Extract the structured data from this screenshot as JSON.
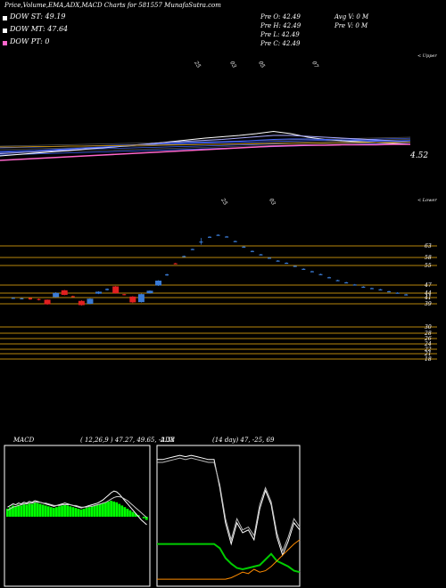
{
  "header": {
    "title": "Price,Volume,EMA,ADX,MACD Charts for 581557 MunafaSutra.com"
  },
  "legend": [
    {
      "label": "DOW ST: 49.19",
      "color": "#ffffff"
    },
    {
      "label": "DOW MT: 47.64",
      "color": "#ffffff"
    },
    {
      "label": "DOW PT: 0",
      "color": "#ff66cc"
    }
  ],
  "ohlc": {
    "open": "Pre  O: 42.49",
    "high": "Pre  H: 42.49",
    "low": "Pre  L: 42.49",
    "close": "Pre  C: 42.49",
    "avg_volume": "Avg V: 0  M",
    "pre_volume": "Pre  V: 0  M"
  },
  "labels": {
    "upper": "< Upper",
    "lower": "< Lower",
    "ema_value": "4.52"
  },
  "colors": {
    "background": "#000000",
    "resistance_line": "#b8860b",
    "up_candle": "#3a7bd5",
    "down_candle": "#e02020",
    "macd_hist": "#00ff00",
    "adx_green": "#00cc00",
    "adx_orange": "#ff8c00",
    "ema_blue": "#4466ff",
    "ema_pink": "#ff66cc"
  },
  "chart_data": [
    {
      "type": "line",
      "panel": "ema",
      "date_labels": [
        "25",
        "03",
        "05",
        "07"
      ],
      "series": [
        {
          "values": [
            70,
            73,
            76,
            79,
            82,
            85,
            88,
            91,
            94,
            98,
            102,
            106,
            110,
            113,
            116,
            120,
            125,
            120,
            112,
            107,
            104,
            102,
            100,
            98,
            96
          ]
        },
        {
          "values": [
            75,
            77,
            79,
            81,
            83,
            86,
            89,
            92,
            95,
            98,
            101,
            103,
            105,
            107,
            110,
            113,
            116,
            116,
            114,
            112,
            110,
            108,
            106,
            104,
            102
          ]
        },
        {
          "values": [
            78,
            80,
            82,
            84,
            86,
            88,
            90,
            92,
            94,
            96,
            98,
            100,
            101,
            102,
            103,
            105,
            107,
            108,
            108,
            107,
            106,
            105,
            104,
            103,
            102
          ]
        },
        {
          "values": [
            60,
            62,
            64,
            66,
            68,
            70,
            72,
            74,
            76,
            78,
            80,
            82,
            84,
            86,
            88,
            90,
            92,
            93,
            94,
            94,
            95,
            95,
            95,
            96,
            96
          ]
        },
        {
          "values": [
            90,
            90,
            91,
            91,
            92,
            92,
            93,
            93,
            94,
            94,
            95,
            95,
            96,
            96,
            97,
            97,
            98,
            98,
            99,
            99,
            100,
            100,
            100,
            100,
            101
          ]
        }
      ]
    },
    {
      "type": "candlestick",
      "panel": "price",
      "date_labels": [
        "25",
        "03"
      ],
      "y_ticks": [
        63,
        58,
        55,
        47,
        44,
        41,
        39,
        30,
        28,
        26,
        24,
        22,
        21,
        18
      ],
      "resistance_levels": [
        63,
        58,
        55,
        47,
        44,
        41,
        39,
        30,
        28,
        26,
        24,
        22,
        21,
        18
      ],
      "candles": [
        {
          "o": 41.5,
          "h": 41.6,
          "l": 41.4,
          "c": 41.5
        },
        {
          "o": 41.3,
          "h": 41.4,
          "l": 41.2,
          "c": 41.3
        },
        {
          "o": 41.4,
          "h": 41.5,
          "l": 40.7,
          "c": 40.8
        },
        {
          "o": 41.0,
          "h": 41.2,
          "l": 40.4,
          "c": 40.6
        },
        {
          "o": 40.7,
          "h": 40.8,
          "l": 38.6,
          "c": 38.8
        },
        {
          "o": 41.8,
          "h": 43.8,
          "l": 41.6,
          "c": 43.5
        },
        {
          "o": 44.6,
          "h": 44.8,
          "l": 42.5,
          "c": 42.7
        },
        {
          "o": 42.2,
          "h": 42.4,
          "l": 41.8,
          "c": 42.0
        },
        {
          "o": 40.2,
          "h": 40.5,
          "l": 38.3,
          "c": 38.5
        },
        {
          "o": 39.0,
          "h": 41.3,
          "l": 38.8,
          "c": 41.1
        },
        {
          "o": 43.2,
          "h": 44.2,
          "l": 43.0,
          "c": 44.0
        },
        {
          "o": 44.7,
          "h": 45.4,
          "l": 44.5,
          "c": 45.2
        },
        {
          "o": 46.2,
          "h": 46.4,
          "l": 43.2,
          "c": 43.4
        },
        {
          "o": 43.0,
          "h": 43.1,
          "l": 42.5,
          "c": 42.6
        },
        {
          "o": 42.0,
          "h": 42.2,
          "l": 39.3,
          "c": 39.6
        },
        {
          "o": 39.7,
          "h": 43.2,
          "l": 39.5,
          "c": 43.0
        },
        {
          "o": 43.4,
          "h": 44.6,
          "l": 43.2,
          "c": 44.4
        },
        {
          "o": 46.6,
          "h": 48.8,
          "l": 46.4,
          "c": 48.6
        },
        {
          "o": 51.0,
          "h": 51.5,
          "l": 50.6,
          "c": 51.2
        },
        {
          "o": 55.8,
          "h": 56.0,
          "l": 55.5,
          "c": 55.7
        },
        {
          "o": 58.8,
          "h": 59.0,
          "l": 58.6,
          "c": 58.8
        },
        {
          "o": 61.7,
          "h": 61.9,
          "l": 61.5,
          "c": 61.7
        },
        {
          "o": 64.8,
          "h": 66.3,
          "l": 63.5,
          "c": 64.8
        },
        {
          "o": 66.8,
          "h": 67.0,
          "l": 66.6,
          "c": 66.8
        },
        {
          "o": 67.6,
          "h": 67.8,
          "l": 67.4,
          "c": 67.6
        },
        {
          "o": 66.9,
          "h": 67.1,
          "l": 66.7,
          "c": 66.9
        },
        {
          "o": 65.0,
          "h": 65.2,
          "l": 64.8,
          "c": 65.0
        },
        {
          "o": 62.7,
          "h": 62.9,
          "l": 62.5,
          "c": 62.7
        },
        {
          "o": 60.9,
          "h": 61.1,
          "l": 60.7,
          "c": 60.9
        },
        {
          "o": 59.5,
          "h": 59.7,
          "l": 59.3,
          "c": 59.5
        },
        {
          "o": 58.1,
          "h": 58.3,
          "l": 57.9,
          "c": 58.1
        },
        {
          "o": 56.9,
          "h": 57.1,
          "l": 56.7,
          "c": 56.9
        },
        {
          "o": 56.0,
          "h": 56.2,
          "l": 55.8,
          "c": 56.0
        },
        {
          "o": 54.7,
          "h": 54.9,
          "l": 54.5,
          "c": 54.7
        },
        {
          "o": 53.5,
          "h": 53.7,
          "l": 53.3,
          "c": 53.5
        },
        {
          "o": 52.5,
          "h": 52.7,
          "l": 52.3,
          "c": 52.5
        },
        {
          "o": 51.3,
          "h": 51.5,
          "l": 51.1,
          "c": 51.3
        },
        {
          "o": 50.0,
          "h": 50.2,
          "l": 49.8,
          "c": 50.0
        },
        {
          "o": 48.8,
          "h": 49.0,
          "l": 48.6,
          "c": 48.8
        },
        {
          "o": 47.9,
          "h": 48.1,
          "l": 47.7,
          "c": 47.9
        },
        {
          "o": 47.0,
          "h": 47.2,
          "l": 46.8,
          "c": 47.0
        },
        {
          "o": 46.1,
          "h": 46.3,
          "l": 45.9,
          "c": 46.1
        },
        {
          "o": 45.5,
          "h": 45.7,
          "l": 45.3,
          "c": 45.5
        },
        {
          "o": 45.0,
          "h": 45.2,
          "l": 44.8,
          "c": 45.0
        },
        {
          "o": 44.2,
          "h": 44.4,
          "l": 44.0,
          "c": 44.2
        },
        {
          "o": 43.6,
          "h": 43.8,
          "l": 43.4,
          "c": 43.6
        },
        {
          "o": 42.9,
          "h": 43.1,
          "l": 42.7,
          "c": 42.9
        }
      ]
    },
    {
      "type": "bar",
      "panel": "macd",
      "title": "MACD",
      "params": "( 12,26,9 ) 47.27, 49.65, -2.38",
      "histogram": [
        10,
        12,
        14,
        13,
        15,
        14,
        16,
        15,
        17,
        16,
        18,
        17,
        16,
        15,
        14,
        13,
        12,
        11,
        12,
        13,
        14,
        15,
        14,
        13,
        12,
        11,
        10,
        9,
        10,
        11,
        12,
        13,
        14,
        15,
        16,
        17,
        18,
        19,
        20,
        19,
        18,
        16,
        14,
        12,
        10,
        8,
        6,
        4,
        2,
        0,
        -2,
        -4
      ],
      "macd_line": [
        12,
        14,
        16,
        15,
        17,
        16,
        18,
        17,
        19,
        18,
        20,
        19,
        18,
        17,
        16,
        15,
        14,
        13,
        14,
        15,
        16,
        17,
        16,
        15,
        14,
        13,
        12,
        11,
        12,
        13,
        14,
        15,
        16,
        17,
        19,
        21,
        24,
        27,
        30,
        32,
        31,
        28,
        24,
        20,
        16,
        12,
        8,
        4,
        0,
        -4,
        -7,
        -10
      ],
      "signal_line": [
        8,
        10,
        12,
        13,
        14,
        15,
        16,
        16,
        17,
        17,
        18,
        18,
        18,
        17,
        17,
        16,
        15,
        14,
        14,
        14,
        15,
        15,
        15,
        15,
        14,
        14,
        13,
        12,
        12,
        12,
        13,
        13,
        14,
        15,
        16,
        17,
        18,
        20,
        22,
        24,
        25,
        25,
        24,
        22,
        20,
        17,
        14,
        11,
        8,
        5,
        2,
        -1
      ]
    },
    {
      "type": "line",
      "panel": "adx",
      "title": "ADX",
      "params": "(14 day) 47, -25, 69",
      "series": [
        {
          "values": [
            90,
            90,
            91,
            92,
            93,
            92,
            93,
            92,
            91,
            90,
            90,
            70,
            45,
            30,
            45,
            38,
            40,
            33,
            55,
            68,
            58,
            35,
            22,
            32,
            45,
            40
          ]
        },
        {
          "values": [
            88,
            88,
            89,
            90,
            91,
            90,
            91,
            90,
            89,
            88,
            88,
            72,
            48,
            33,
            48,
            40,
            42,
            36,
            58,
            70,
            60,
            38,
            25,
            35,
            48,
            42
          ]
        },
        {
          "values": [
            30,
            30,
            30,
            30,
            30,
            30,
            30,
            30,
            30,
            30,
            30,
            27,
            20,
            16,
            13,
            12,
            13,
            14,
            15,
            19,
            23,
            18,
            16,
            14,
            11,
            10
          ]
        },
        {
          "values": [
            5,
            5,
            5,
            5,
            5,
            5,
            5,
            5,
            5,
            5,
            5,
            5,
            5,
            6,
            8,
            10,
            9,
            12,
            10,
            11,
            14,
            18,
            22,
            26,
            30,
            33
          ]
        }
      ]
    }
  ]
}
